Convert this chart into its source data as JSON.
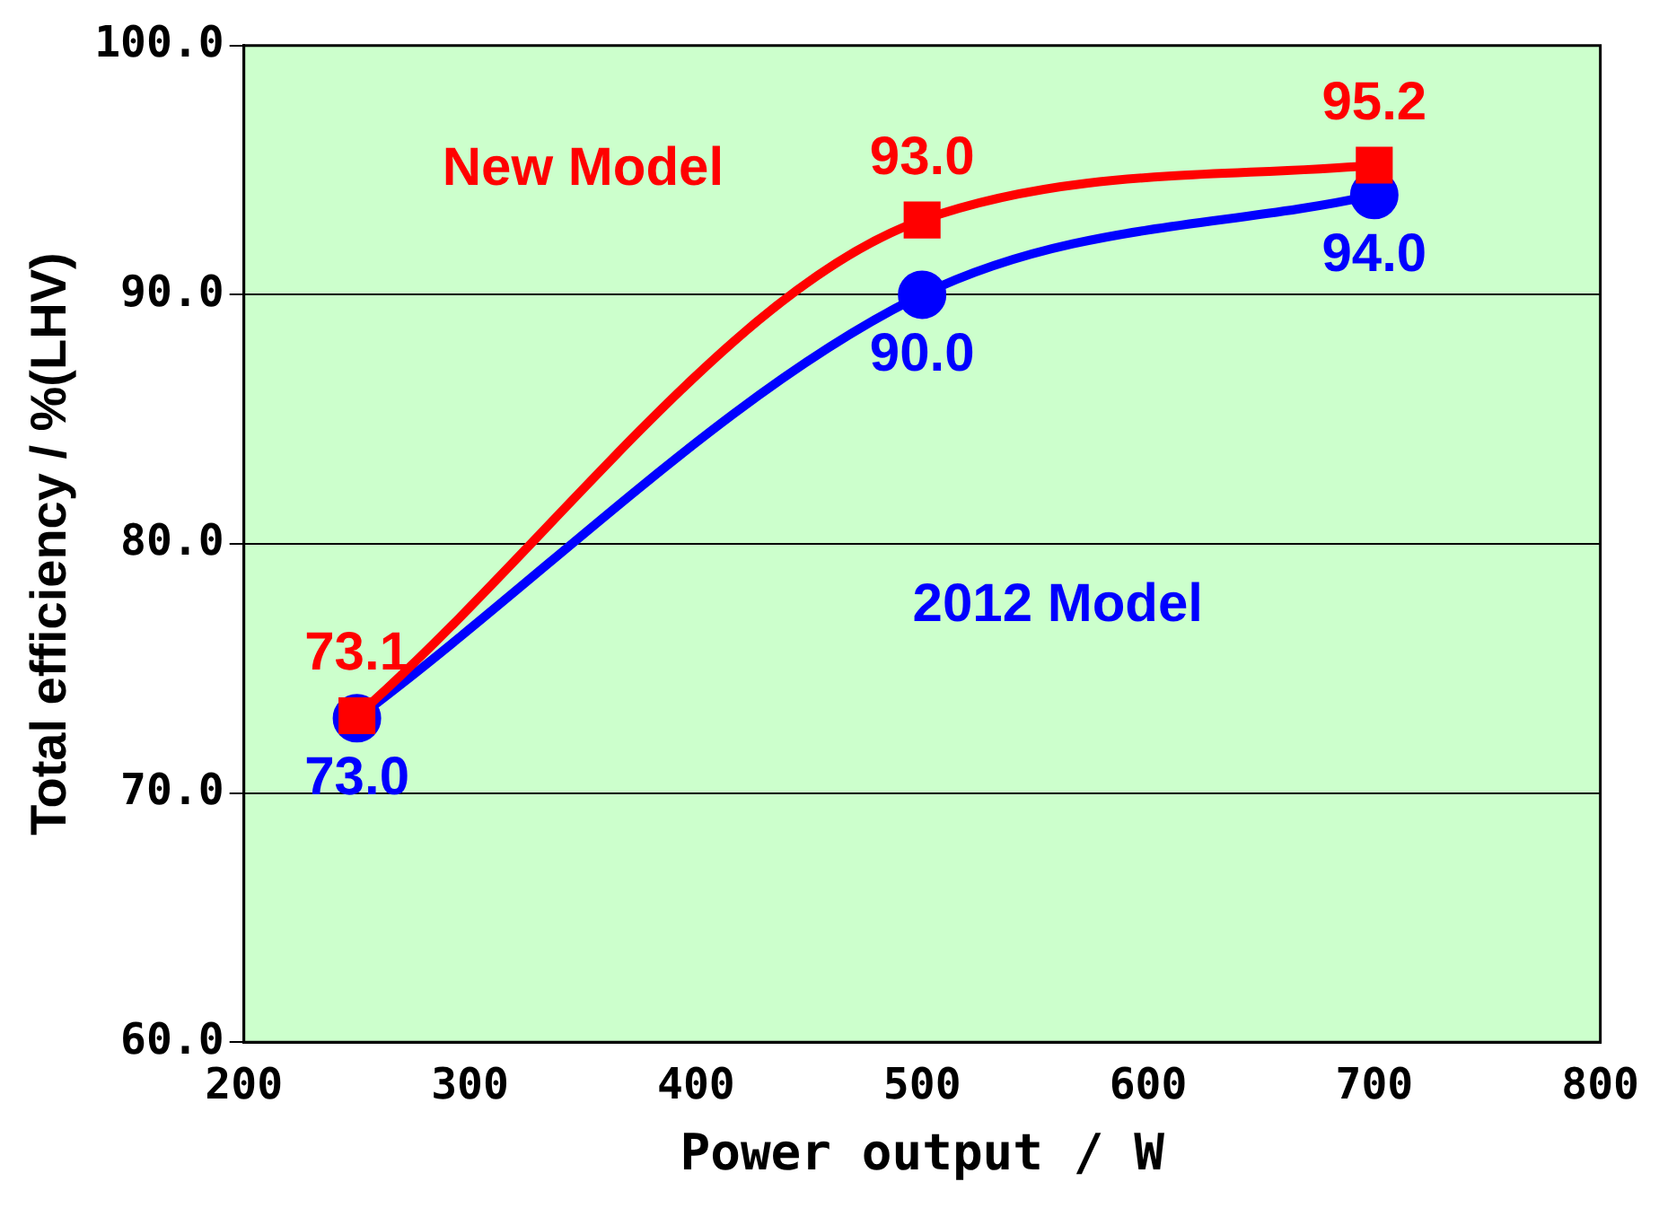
{
  "chart_data": {
    "type": "line",
    "xlabel": "Power output / W",
    "ylabel": "Total efficiency / %(LHV)",
    "xlim": [
      200,
      800
    ],
    "xticks": [
      200,
      300,
      400,
      500,
      600,
      700,
      800
    ],
    "ylim": [
      60,
      100
    ],
    "yticks": [
      {
        "value": 60,
        "label": "60.0"
      },
      {
        "value": 70,
        "label": "70.0"
      },
      {
        "value": 80,
        "label": "80.0"
      },
      {
        "value": 90,
        "label": "90.0"
      },
      {
        "value": 100,
        "label": "100.0"
      }
    ],
    "grid": "y",
    "legend": false,
    "series": [
      {
        "name": "New Model",
        "color": "#ff0000",
        "marker": "square",
        "x": [
          250,
          500,
          700
        ],
        "values": [
          73.1,
          93.0,
          95.2
        ],
        "value_labels": [
          "73.1",
          "93.0",
          "95.2"
        ]
      },
      {
        "name": "2012 Model",
        "color": "#0000ff",
        "marker": "circle",
        "x": [
          250,
          500,
          700
        ],
        "values": [
          73.0,
          90.0,
          94.0
        ],
        "value_labels": [
          "73.0",
          "90.0",
          "94.0"
        ]
      }
    ]
  }
}
